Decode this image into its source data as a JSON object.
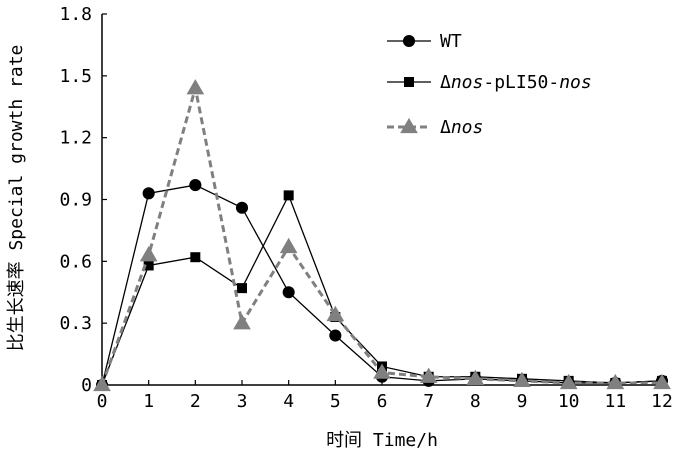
{
  "chart_data": {
    "type": "line",
    "xlabel": "时间 Time/h",
    "ylabel": "比生长速率 Special growth rate",
    "x": [
      0,
      1,
      2,
      3,
      4,
      5,
      6,
      7,
      8,
      9,
      10,
      11,
      12
    ],
    "xlim": [
      0,
      12
    ],
    "ylim": [
      0,
      1.8
    ],
    "xticks": [
      "0",
      "1",
      "2",
      "3",
      "4",
      "5",
      "6",
      "7",
      "8",
      "9",
      "10",
      "11",
      "12"
    ],
    "yticks": [
      "0",
      "0.3",
      "0.6",
      "0.9",
      "1.2",
      "1.5",
      "1.8"
    ],
    "grid": false,
    "legend_position": "top-right",
    "series": [
      {
        "name": "WT",
        "name_parts": [
          {
            "text": "WT",
            "italic": false
          }
        ],
        "values": [
          0,
          0.93,
          0.97,
          0.86,
          0.45,
          0.24,
          0.04,
          0.02,
          0.03,
          0.02,
          0.01,
          0.01,
          0.02
        ],
        "color": "#000000",
        "marker": "circle",
        "dashed": false
      },
      {
        "name": "Δnos-pLI50-nos",
        "name_parts": [
          {
            "text": "Δ",
            "italic": false
          },
          {
            "text": "nos",
            "italic": true
          },
          {
            "text": "-pLI50-",
            "italic": false
          },
          {
            "text": "nos",
            "italic": true
          }
        ],
        "values": [
          0,
          0.58,
          0.62,
          0.47,
          0.92,
          0.33,
          0.09,
          0.04,
          0.04,
          0.03,
          0.02,
          0.01,
          0.02
        ],
        "color": "#000000",
        "marker": "square",
        "dashed": false
      },
      {
        "name": "Δnos",
        "name_parts": [
          {
            "text": "Δ",
            "italic": false
          },
          {
            "text": "nos",
            "italic": true
          }
        ],
        "values": [
          0,
          0.63,
          1.44,
          0.3,
          0.67,
          0.34,
          0.06,
          0.04,
          0.03,
          0.02,
          0.01,
          0.01,
          0.01
        ],
        "color": "#808080",
        "marker": "triangle",
        "dashed": true
      }
    ]
  }
}
